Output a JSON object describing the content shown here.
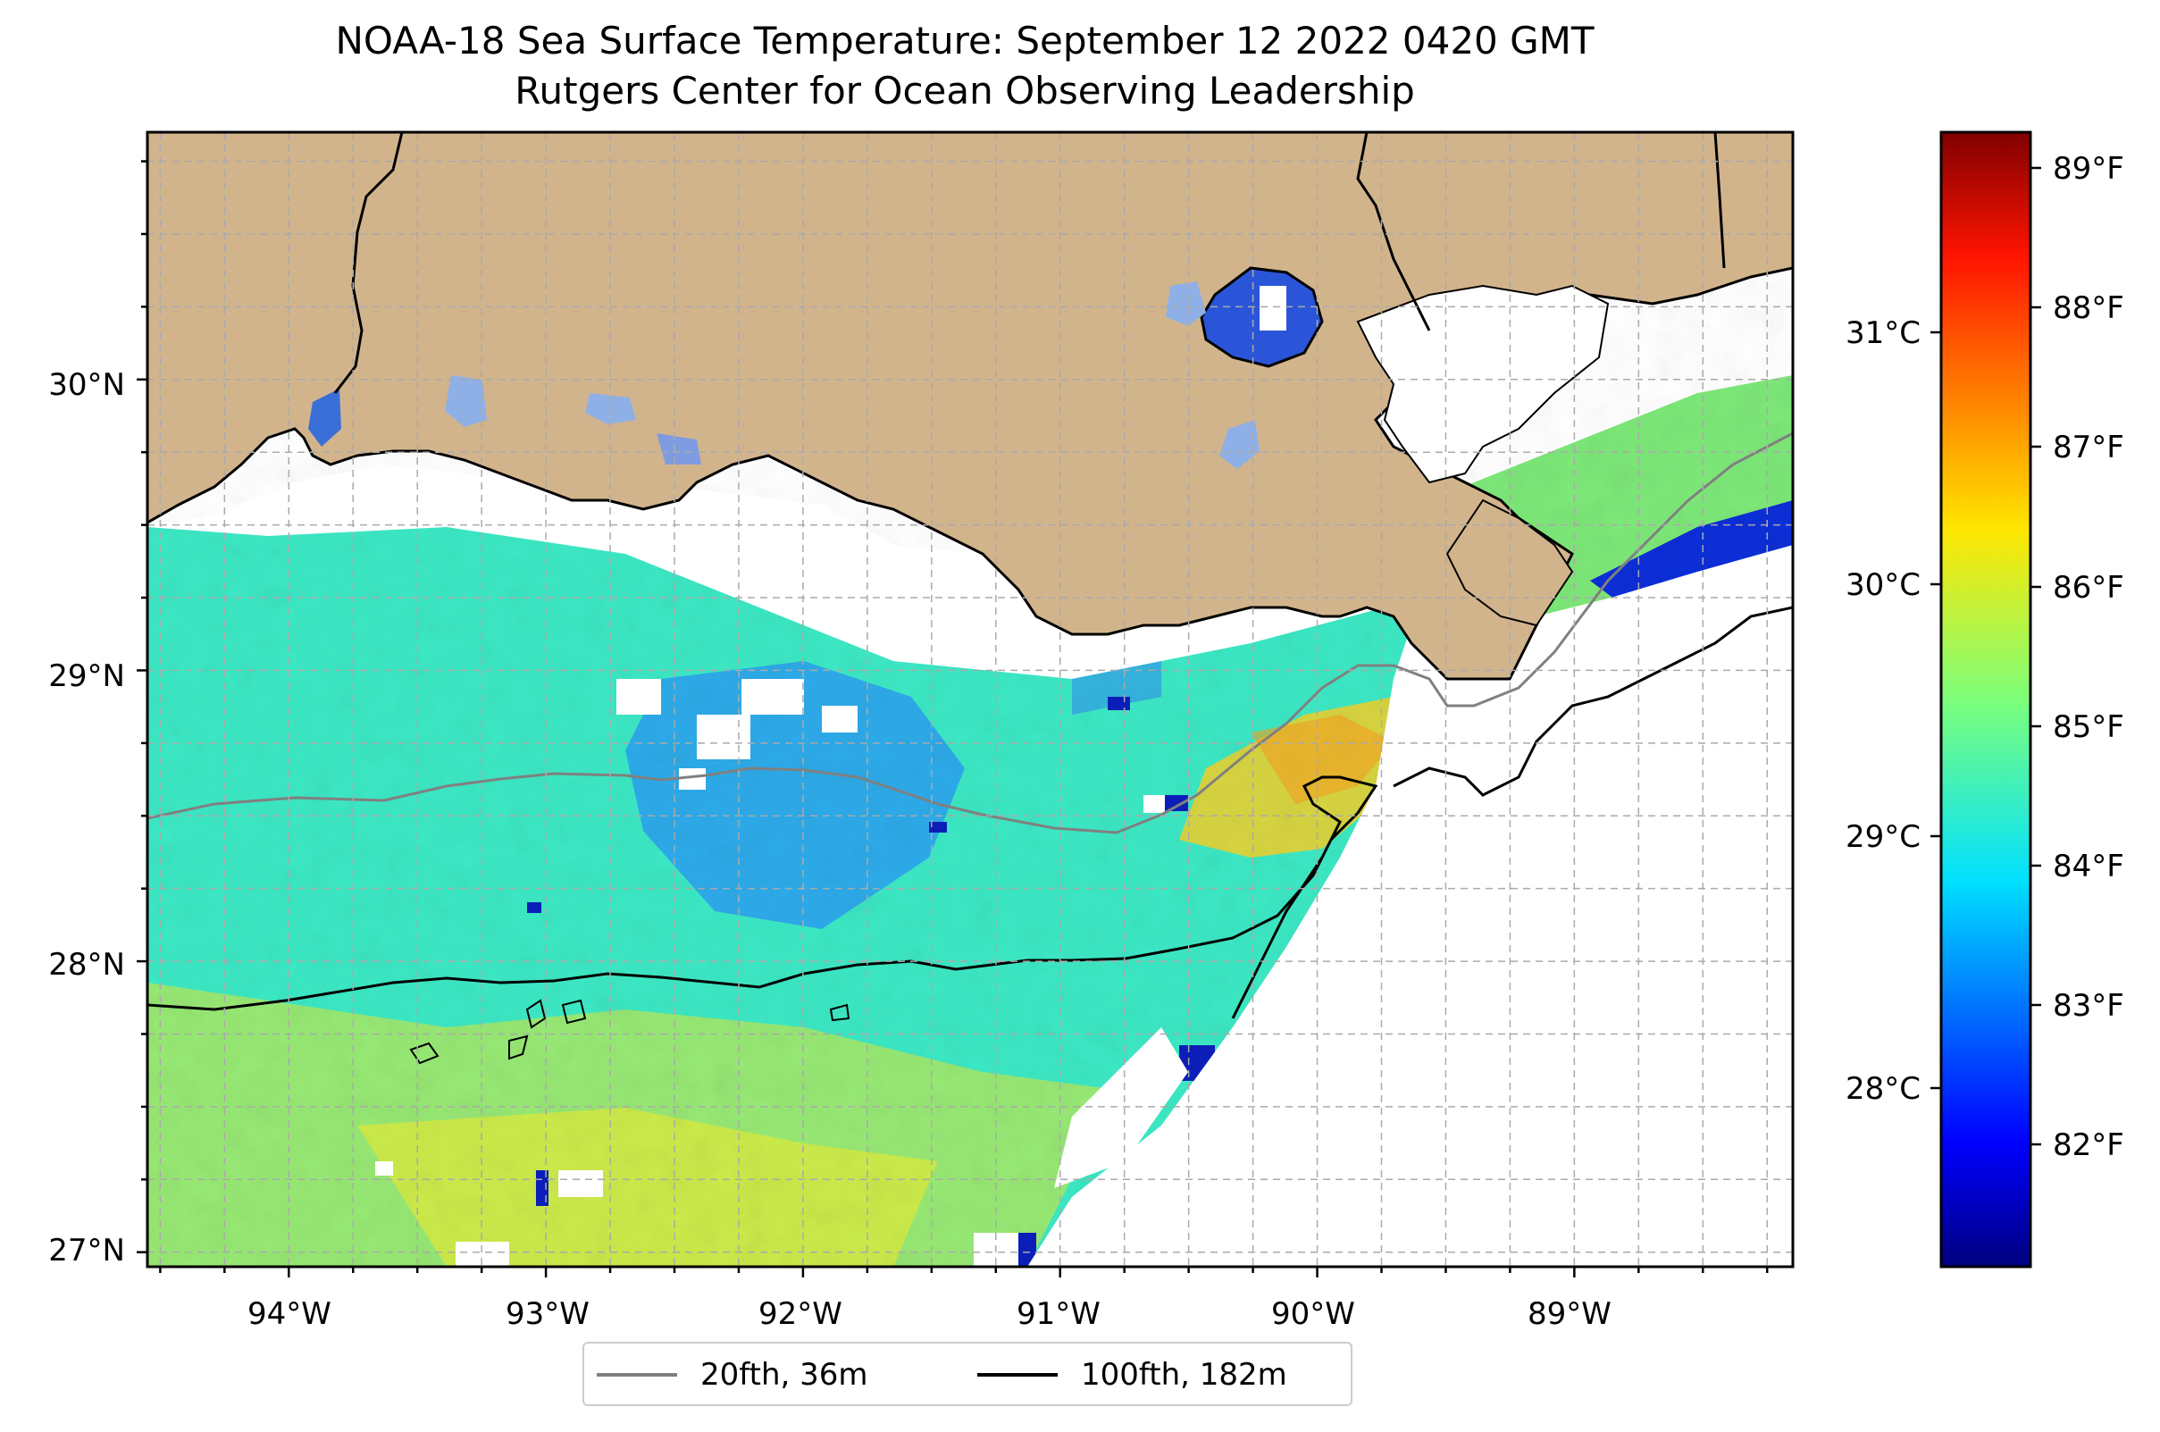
{
  "title": {
    "line1": "NOAA-18 Sea Surface Temperature: September 12 2022 0420 GMT",
    "line2": "Rutgers Center for Ocean Observing Leadership"
  },
  "map": {
    "lon_range": [
      -94.55,
      -88.15
    ],
    "lat_range": [
      26.95,
      30.85
    ],
    "x_ticks": [
      "94°W",
      "93°W",
      "92°W",
      "91°W",
      "90°W",
      "89°W"
    ],
    "y_ticks": [
      "27°N",
      "28°N",
      "29°N",
      "30°N"
    ],
    "land_color": "#d2b48c",
    "ocean_colors": {
      "shelf": "#3cefc0",
      "warm": "#d8e84a",
      "cool": "#3aa8f0",
      "cold": "#0a1fb0"
    },
    "contours": {
      "shelf_20fth": "#808080",
      "shelf_100fth": "#000000"
    }
  },
  "colorbar": {
    "colormap": "jet",
    "celsius_ticks": [
      "31°C",
      "30°C",
      "29°C",
      "28°C"
    ],
    "fahrenheit_ticks": [
      "89°F",
      "88°F",
      "87°F",
      "86°F",
      "85°F",
      "84°F",
      "83°F",
      "82°F"
    ]
  },
  "legend": {
    "items": [
      {
        "label": "20fth, 36m",
        "color": "#808080"
      },
      {
        "label": "100fth, 182m",
        "color": "#000000"
      }
    ]
  }
}
